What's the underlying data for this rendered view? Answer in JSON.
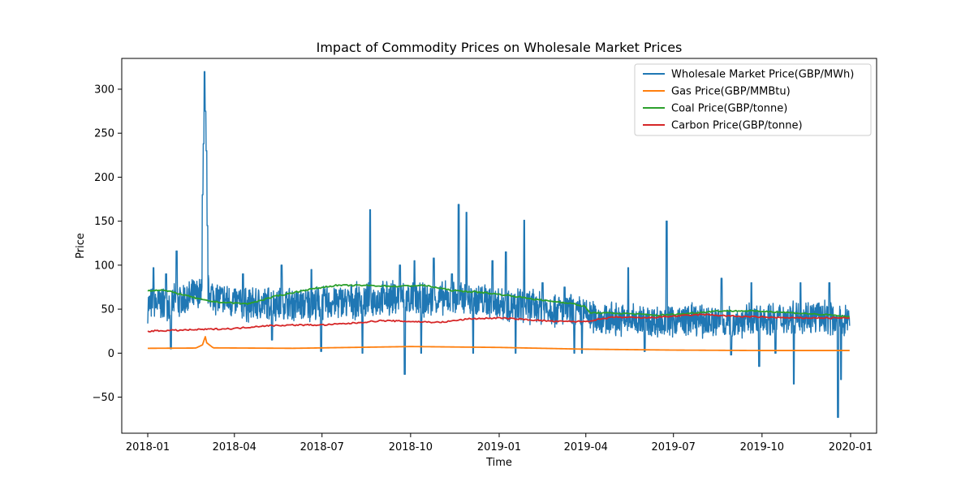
{
  "chart_data": {
    "type": "line",
    "title": "Impact of Commodity Prices on Wholesale Market Prices",
    "xlabel": "Time",
    "ylabel": "Price",
    "x_range": [
      "2017-12-05",
      "2020-01-28"
    ],
    "y_range": [
      -91,
      335
    ],
    "x_ticks": [
      "2018-01",
      "2018-04",
      "2018-07",
      "2018-10",
      "2019-01",
      "2019-04",
      "2019-07",
      "2019-10",
      "2020-01"
    ],
    "y_ticks": [
      -50,
      0,
      50,
      100,
      150,
      200,
      250,
      300
    ],
    "grid": false,
    "legend_position": "top-right",
    "series": [
      {
        "name": "Wholesale Market Price(GBP/MWh)",
        "color": "#1f77b4",
        "base_points": [
          [
            "2018-01-01",
            55
          ],
          [
            "2018-02-01",
            58
          ],
          [
            "2018-02-20",
            65
          ],
          [
            "2018-03-05",
            70
          ],
          [
            "2018-03-15",
            62
          ],
          [
            "2018-04-15",
            55
          ],
          [
            "2018-05-15",
            57
          ],
          [
            "2018-06-15",
            55
          ],
          [
            "2018-07-15",
            58
          ],
          [
            "2018-08-15",
            60
          ],
          [
            "2018-09-15",
            63
          ],
          [
            "2018-10-15",
            60
          ],
          [
            "2018-11-15",
            62
          ],
          [
            "2018-12-15",
            60
          ],
          [
            "2019-01-15",
            55
          ],
          [
            "2019-02-15",
            52
          ],
          [
            "2019-03-15",
            48
          ],
          [
            "2019-04-15",
            40
          ],
          [
            "2019-05-15",
            38
          ],
          [
            "2019-06-15",
            36
          ],
          [
            "2019-07-15",
            38
          ],
          [
            "2019-08-15",
            36
          ],
          [
            "2019-09-15",
            37
          ],
          [
            "2019-10-15",
            40
          ],
          [
            "2019-11-15",
            42
          ],
          [
            "2019-12-15",
            40
          ],
          [
            "2019-12-31",
            38
          ]
        ],
        "spread": 22,
        "spikes": [
          [
            "2018-01-07",
            97
          ],
          [
            "2018-01-20",
            90
          ],
          [
            "2018-01-31",
            116
          ],
          [
            "2018-02-27",
            180
          ],
          [
            "2018-02-28",
            238
          ],
          [
            "2018-03-01",
            320
          ],
          [
            "2018-03-02",
            275
          ],
          [
            "2018-03-03",
            230
          ],
          [
            "2018-03-04",
            145
          ],
          [
            "2018-04-10",
            90
          ],
          [
            "2018-05-20",
            100
          ],
          [
            "2018-06-20",
            95
          ],
          [
            "2018-08-20",
            163
          ],
          [
            "2018-09-20",
            100
          ],
          [
            "2018-10-05",
            105
          ],
          [
            "2018-10-25",
            108
          ],
          [
            "2018-11-13",
            90
          ],
          [
            "2018-11-20",
            169
          ],
          [
            "2018-11-28",
            160
          ],
          [
            "2018-12-25",
            105
          ],
          [
            "2019-01-08",
            115
          ],
          [
            "2019-01-27",
            151
          ],
          [
            "2019-02-15",
            80
          ],
          [
            "2019-03-10",
            75
          ],
          [
            "2019-05-15",
            97
          ],
          [
            "2019-06-24",
            150
          ],
          [
            "2019-08-20",
            85
          ],
          [
            "2019-09-20",
            80
          ],
          [
            "2019-11-10",
            80
          ],
          [
            "2019-12-10",
            80
          ],
          [
            "2018-01-25",
            5
          ],
          [
            "2018-05-10",
            15
          ],
          [
            "2018-06-30",
            2
          ],
          [
            "2018-08-12",
            0
          ],
          [
            "2018-09-25",
            -24
          ],
          [
            "2018-10-12",
            0
          ],
          [
            "2018-12-05",
            0
          ],
          [
            "2019-01-18",
            0
          ],
          [
            "2019-03-20",
            0
          ],
          [
            "2019-03-28",
            0
          ],
          [
            "2019-06-01",
            2
          ],
          [
            "2019-08-30",
            -2
          ],
          [
            "2019-09-28",
            -15
          ],
          [
            "2019-10-15",
            0
          ],
          [
            "2019-11-03",
            -35
          ],
          [
            "2019-12-19",
            -73
          ],
          [
            "2019-12-22",
            -30
          ]
        ]
      },
      {
        "name": "Gas Price(GBP/MMBtu)",
        "color": "#ff7f0e",
        "points": [
          [
            "2018-01-01",
            5.5
          ],
          [
            "2018-02-20",
            5.8
          ],
          [
            "2018-02-28",
            10
          ],
          [
            "2018-03-01",
            23
          ],
          [
            "2018-03-03",
            12
          ],
          [
            "2018-03-10",
            6
          ],
          [
            "2018-06-01",
            5.5
          ],
          [
            "2018-10-01",
            7.5
          ],
          [
            "2019-01-01",
            6.5
          ],
          [
            "2019-04-01",
            4.5
          ],
          [
            "2019-07-01",
            3.5
          ],
          [
            "2019-10-01",
            3
          ],
          [
            "2019-12-31",
            3
          ]
        ]
      },
      {
        "name": "Coal Price(GBP/tonne)",
        "color": "#2ca02c",
        "points": [
          [
            "2018-01-01",
            71
          ],
          [
            "2018-01-15",
            72
          ],
          [
            "2018-02-01",
            68
          ],
          [
            "2018-03-01",
            60
          ],
          [
            "2018-03-15",
            58
          ],
          [
            "2018-04-01",
            57
          ],
          [
            "2018-04-15",
            56
          ],
          [
            "2018-05-15",
            65
          ],
          [
            "2018-06-15",
            72
          ],
          [
            "2018-07-15",
            77
          ],
          [
            "2018-08-15",
            77
          ],
          [
            "2018-09-15",
            76
          ],
          [
            "2018-10-15",
            77
          ],
          [
            "2018-11-15",
            71
          ],
          [
            "2018-12-15",
            69
          ],
          [
            "2019-01-15",
            65
          ],
          [
            "2019-02-15",
            60
          ],
          [
            "2019-03-15",
            57
          ],
          [
            "2019-03-31",
            53
          ],
          [
            "2019-04-05",
            46
          ],
          [
            "2019-05-15",
            45
          ],
          [
            "2019-06-15",
            43
          ],
          [
            "2019-07-15",
            45
          ],
          [
            "2019-08-15",
            48
          ],
          [
            "2019-09-15",
            48
          ],
          [
            "2019-10-15",
            47
          ],
          [
            "2019-11-15",
            45
          ],
          [
            "2019-12-15",
            43
          ],
          [
            "2019-12-31",
            41
          ]
        ]
      },
      {
        "name": "Carbon Price(GBP/tonne)",
        "color": "#d62728",
        "points": [
          [
            "2018-01-01",
            25
          ],
          [
            "2018-02-01",
            26
          ],
          [
            "2018-03-01",
            27
          ],
          [
            "2018-04-01",
            28
          ],
          [
            "2018-05-01",
            31
          ],
          [
            "2018-06-01",
            32
          ],
          [
            "2018-07-01",
            32
          ],
          [
            "2018-08-01",
            34
          ],
          [
            "2018-09-01",
            37
          ],
          [
            "2018-10-01",
            36
          ],
          [
            "2018-11-01",
            35
          ],
          [
            "2018-12-01",
            39
          ],
          [
            "2019-01-01",
            40
          ],
          [
            "2019-02-01",
            38
          ],
          [
            "2019-03-01",
            36
          ],
          [
            "2019-04-01",
            36
          ],
          [
            "2019-05-01",
            41
          ],
          [
            "2019-06-01",
            40
          ],
          [
            "2019-07-01",
            42
          ],
          [
            "2019-08-01",
            44
          ],
          [
            "2019-09-01",
            42
          ],
          [
            "2019-10-01",
            41
          ],
          [
            "2019-11-01",
            40
          ],
          [
            "2019-12-01",
            40
          ],
          [
            "2019-12-31",
            40
          ]
        ]
      }
    ]
  }
}
